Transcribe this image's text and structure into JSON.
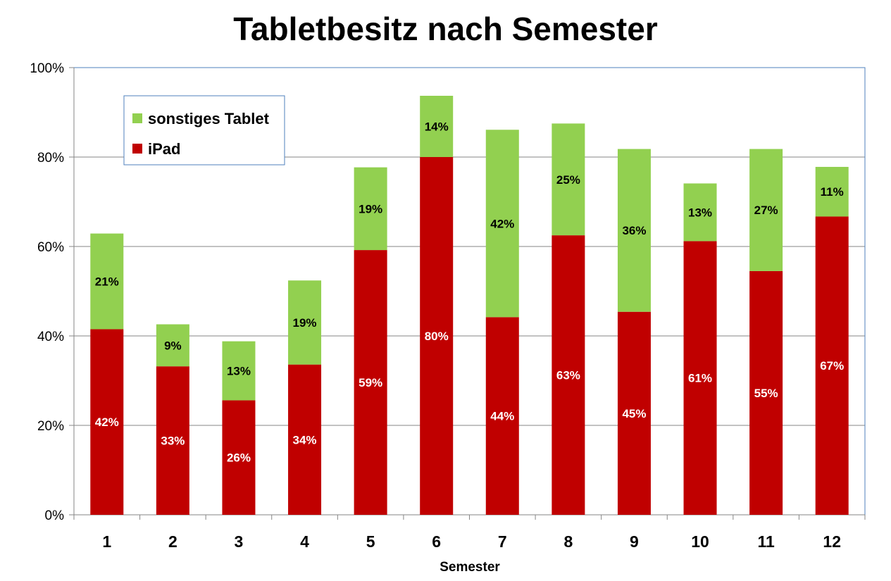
{
  "chart_data": {
    "type": "bar",
    "stacked": true,
    "title": "Tabletbesitz nach Semester",
    "xlabel": "Semester",
    "ylabel": "",
    "ylim": [
      0,
      100
    ],
    "yticks": [
      "0%",
      "20%",
      "40%",
      "60%",
      "80%",
      "100%"
    ],
    "grid": true,
    "legend_position": "top-left",
    "categories": [
      "1",
      "2",
      "3",
      "4",
      "5",
      "6",
      "7",
      "8",
      "9",
      "10",
      "11",
      "12"
    ],
    "series": [
      {
        "name": "iPad",
        "color": "#C00000",
        "label_color": "#FFFFFF",
        "values": [
          41.5,
          33.2,
          25.6,
          33.6,
          59.2,
          80.0,
          44.2,
          62.5,
          45.4,
          61.2,
          54.5,
          66.7
        ],
        "labels": [
          "42%",
          "33%",
          "26%",
          "34%",
          "59%",
          "80%",
          "44%",
          "63%",
          "45%",
          "61%",
          "55%",
          "67%"
        ]
      },
      {
        "name": "sonstiges Tablet",
        "color": "#92D050",
        "label_color": "#000000",
        "values": [
          21.4,
          9.4,
          13.2,
          18.8,
          18.5,
          13.7,
          41.9,
          25.0,
          36.4,
          12.9,
          27.3,
          11.1
        ],
        "labels": [
          "21%",
          "9%",
          "13%",
          "19%",
          "19%",
          "14%",
          "42%",
          "25%",
          "36%",
          "13%",
          "27%",
          "11%"
        ]
      }
    ],
    "legend_order": [
      "sonstiges Tablet",
      "iPad"
    ]
  },
  "colors": {
    "grid": "#868686",
    "plot_border": "#4F81BD",
    "axis": "#868686"
  }
}
